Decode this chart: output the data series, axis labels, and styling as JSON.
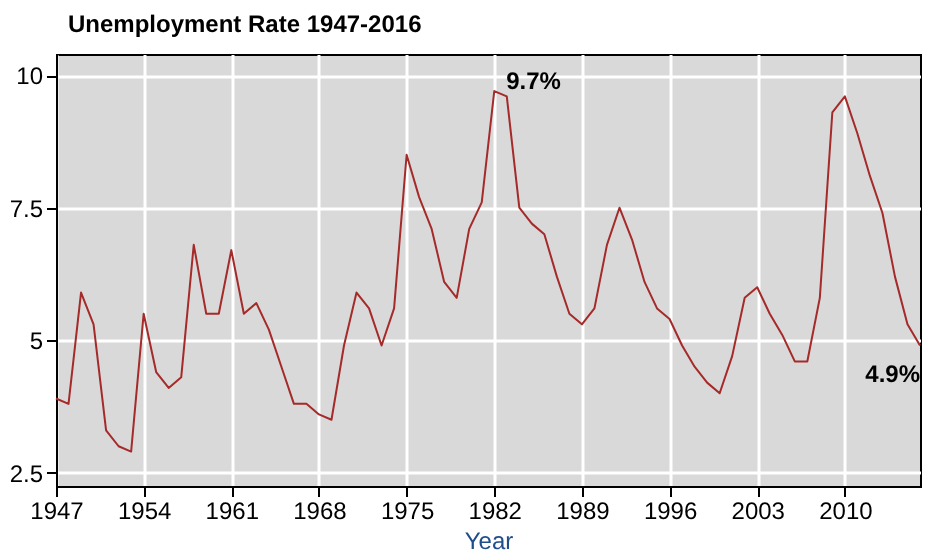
{
  "chart_data": {
    "type": "line",
    "title": "Unemployment Rate 1947-2016",
    "xlabel": "Year",
    "x": [
      1947,
      1948,
      1949,
      1950,
      1951,
      1952,
      1953,
      1954,
      1955,
      1956,
      1957,
      1958,
      1959,
      1960,
      1961,
      1962,
      1963,
      1964,
      1965,
      1966,
      1967,
      1968,
      1969,
      1970,
      1971,
      1972,
      1973,
      1974,
      1975,
      1976,
      1977,
      1978,
      1979,
      1980,
      1981,
      1982,
      1983,
      1984,
      1985,
      1986,
      1987,
      1988,
      1989,
      1990,
      1991,
      1992,
      1993,
      1994,
      1995,
      1996,
      1997,
      1998,
      1999,
      2000,
      2001,
      2002,
      2003,
      2004,
      2005,
      2006,
      2007,
      2008,
      2009,
      2010,
      2011,
      2012,
      2013,
      2014,
      2015,
      2016
    ],
    "series": [
      {
        "color": "#a52a2a",
        "values": [
          3.9,
          3.8,
          5.9,
          5.3,
          3.3,
          3.0,
          2.9,
          5.5,
          4.4,
          4.1,
          4.3,
          6.8,
          5.5,
          5.5,
          6.7,
          5.5,
          5.7,
          5.2,
          4.5,
          3.8,
          3.8,
          3.6,
          3.5,
          4.9,
          5.9,
          5.6,
          4.9,
          5.6,
          8.5,
          7.7,
          7.1,
          6.1,
          5.8,
          7.1,
          7.6,
          9.7,
          9.6,
          7.5,
          7.2,
          7.0,
          6.2,
          5.5,
          5.3,
          5.6,
          6.8,
          7.5,
          6.9,
          6.1,
          5.6,
          5.4,
          4.9,
          4.5,
          4.2,
          4.0,
          4.7,
          5.8,
          6.0,
          5.5,
          5.1,
          4.6,
          4.6,
          5.8,
          9.3,
          9.6,
          8.9,
          8.1,
          7.4,
          6.2,
          5.3,
          4.9
        ]
      }
    ],
    "xlim": [
      1947,
      2016
    ],
    "xticks": [
      1947,
      1954,
      1961,
      1968,
      1975,
      1982,
      1989,
      1996,
      2003,
      2010
    ],
    "ylim": [
      2.25,
      10.4
    ],
    "yticks": [
      2.5,
      5,
      7.5,
      10
    ],
    "grid": true,
    "annotations": [
      {
        "text": "9.7%",
        "x": 1982,
        "y": 9.7
      },
      {
        "text": "4.9%",
        "x": 2016,
        "y": 4.9
      }
    ]
  }
}
